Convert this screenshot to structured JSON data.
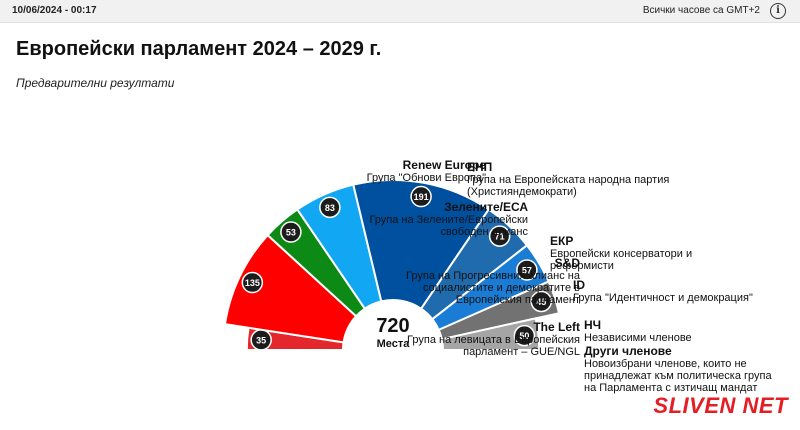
{
  "header": {
    "timestamp": "10/06/2024 - 00:17",
    "timezone": "Всички часове са GMT+2",
    "info_icon": "info-icon"
  },
  "title": "Европейски парламент 2024 – 2029 г.",
  "subtitle": "Предварителни резултати",
  "logo": "SLIVEN NET",
  "chart_data": {
    "type": "pie",
    "layout": "parliament-hemicycle",
    "total": 720,
    "total_label": "Места",
    "series": [
      {
        "name": "The Left",
        "desc": "Група на левицата в Европейския парламент – GUE/NGL",
        "value": 35,
        "color": "#e4272d"
      },
      {
        "name": "S&D",
        "desc": "Група на Прогресивния алианс на социалистите и демократите в Европейския парламент",
        "value": 135,
        "color": "#ff0000"
      },
      {
        "name": "Зелените/ЕСА",
        "desc": "Група на Зелените/Европейски свободен алианс",
        "value": 53,
        "color": "#0d8a16"
      },
      {
        "name": "Renew Europe",
        "desc": "Група \"Обнови Европа\"",
        "value": 83,
        "color": "#11a7f3"
      },
      {
        "name": "ЕНП",
        "desc": "Група на Европейската народна партия (Християндемократи)",
        "value": 191,
        "color": "#0050a0"
      },
      {
        "name": "ЕКР",
        "desc": "Европейски консерватори и реформисти",
        "value": 71,
        "color": "#1f6bad"
      },
      {
        "name": "ID",
        "desc": "Група \"Идентичност и демокрация\"",
        "value": 57,
        "color": "#1a7cd4"
      },
      {
        "name": "НЧ",
        "desc": "Независими членове",
        "value": 45,
        "color": "#727272"
      },
      {
        "name": "Други членове",
        "desc": "Новоизбрани членове, които не принадлежат към политическа група на Парламента с изтичащ мандат",
        "value": 50,
        "color": "#a5a5a5"
      }
    ]
  }
}
